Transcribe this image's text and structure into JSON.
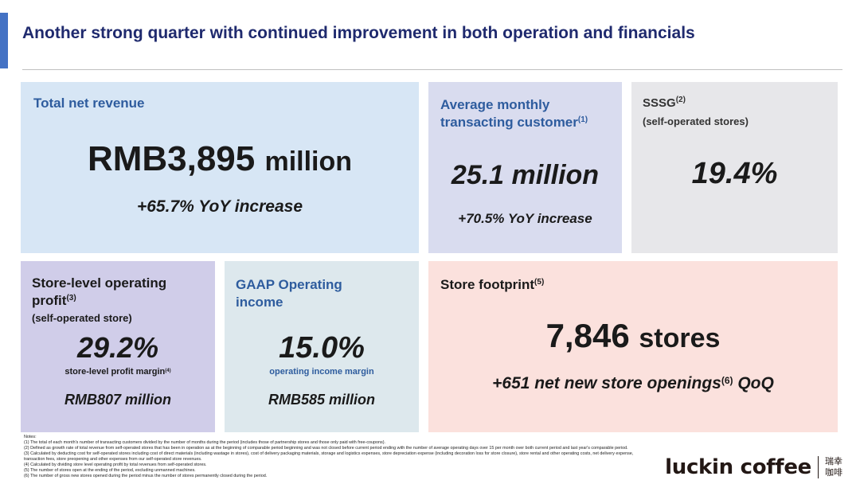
{
  "title": "Another strong quarter with continued improvement in both operation and financials",
  "colors": {
    "accent": "#4472c4",
    "title": "#1f2a6e",
    "heading_blue": "#2e5c9e"
  },
  "revenue": {
    "heading": "Total net revenue",
    "value_num": "RMB3,895",
    "value_unit": "million",
    "change": "+65.7% YoY increase"
  },
  "mtc": {
    "heading_line1": "Average monthly",
    "heading_line2": "transacting customer",
    "note": "(1)",
    "value": "25.1 million",
    "change": "+70.5% YoY increase"
  },
  "sssg": {
    "heading": "SSSG",
    "note": "(2)",
    "sub": "(self-operated stores)",
    "value": "19.4%"
  },
  "store_profit": {
    "heading_line1": "Store-level operating",
    "heading_line2": "profit",
    "note": "(3)",
    "sub": "(self-operated store)",
    "value": "29.2%",
    "label": "store-level profit margin",
    "label_note": "(4)",
    "amount": "RMB807 million"
  },
  "gaap": {
    "heading_line1": "GAAP Operating",
    "heading_line2": "income",
    "value": "15.0%",
    "label": "operating income margin",
    "amount": "RMB585 million"
  },
  "footprint": {
    "heading": "Store footprint",
    "note": "(5)",
    "value_num": "7,846",
    "value_unit": "stores",
    "change_pre": "+651 net new store openings",
    "change_note": "(6)",
    "change_post": "QoQ"
  },
  "notes": [
    "Notes:",
    "(1) The total of each month's number of transacting customers divided by the number of months during the period (includes those of partnership stores and those only paid with free-coupons).",
    "(2) Defined as growth rate of total revenue from self-operated stores that has been in operation as at the beginning of comparable period beginning and was not closed before current period ending with the number of average operating days over 15 per month over both current period and last year's comparable period.",
    "(3) Calculated by deducting cost for self-operated stores including cost of direct materials (including wastage in stores), cost of delivery packaging materials, storage and logistics expenses, store depreciation expense (including decoration loss for store closure), store rental and other operating costs, net delivery expense, transaction fees, store preopening and other expenses from our self-operated store revenues.",
    "(4) Calculated by dividing store level operating profit by total revenues from self-operated stores.",
    "(5) The number of stores open at the ending of the period, excluding unmanned machines.",
    "(6) The number of gross new stores opened during the period minus the number of stores permanently closed during the period."
  ],
  "logo": {
    "text": "luckin coffee",
    "cn_line1": "瑞幸",
    "cn_line2": "咖啡"
  }
}
